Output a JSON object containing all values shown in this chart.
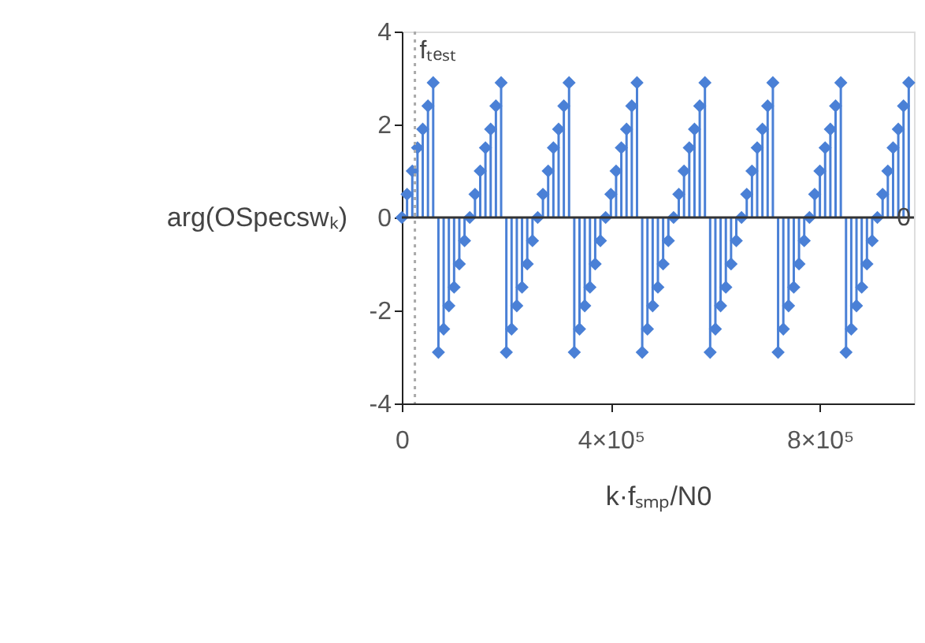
{
  "chart_data": {
    "type": "lollipop",
    "xlabel": "k·fₛₘₚ/N0",
    "ylabel": "arg(OSpecswₖ)",
    "x": [
      0,
      10000,
      20000,
      30000,
      40000,
      50000,
      60000,
      70000,
      80000,
      90000,
      100000,
      110000,
      120000,
      130000,
      140000,
      150000,
      160000,
      170000,
      180000,
      190000,
      200000,
      210000,
      220000,
      230000,
      240000,
      250000,
      260000,
      270000,
      280000,
      290000,
      300000,
      310000,
      320000,
      330000,
      340000,
      350000,
      360000,
      370000,
      380000,
      390000,
      400000,
      410000,
      420000,
      430000,
      440000,
      450000,
      460000,
      470000,
      480000,
      490000,
      500000,
      510000,
      520000,
      530000,
      540000,
      550000,
      560000,
      570000,
      580000,
      590000,
      600000,
      610000,
      620000,
      630000,
      640000,
      650000,
      660000,
      670000,
      680000,
      690000,
      700000,
      710000,
      720000,
      730000,
      740000,
      750000,
      760000,
      770000,
      780000,
      790000,
      800000,
      810000,
      820000,
      830000,
      840000,
      850000,
      860000,
      870000,
      880000,
      890000,
      900000,
      910000,
      920000,
      930000,
      940000,
      950000,
      960000,
      970000
    ],
    "series": [
      {
        "color": "#4a80d6",
        "values": [
          0,
          0.5,
          1.0,
          1.5,
          1.9,
          2.4,
          2.9,
          -2.9,
          -2.4,
          -1.9,
          -1.5,
          -1.0,
          -0.5,
          0,
          0.5,
          1.0,
          1.5,
          1.9,
          2.4,
          2.9,
          -2.9,
          -2.4,
          -1.9,
          -1.5,
          -1.0,
          -0.5,
          0,
          0.5,
          1.0,
          1.5,
          1.9,
          2.4,
          2.9,
          -2.9,
          -2.4,
          -1.9,
          -1.5,
          -1.0,
          -0.5,
          0,
          0.5,
          1.0,
          1.5,
          1.9,
          2.4,
          2.9,
          -2.9,
          -2.4,
          -1.9,
          -1.5,
          -1.0,
          -0.5,
          0,
          0.5,
          1.0,
          1.5,
          1.9,
          2.4,
          2.9,
          -2.9,
          -2.4,
          -1.9,
          -1.5,
          -1.0,
          -0.5,
          0,
          0.5,
          1.0,
          1.5,
          1.9,
          2.4,
          2.9,
          -2.9,
          -2.4,
          -1.9,
          -1.5,
          -1.0,
          -0.5,
          0,
          0.5,
          1.0,
          1.5,
          1.9,
          2.4,
          2.9,
          -2.9,
          -2.4,
          -1.9,
          -1.5,
          -1.0,
          -0.5,
          0,
          0.5,
          1.0,
          1.5,
          1.9,
          2.4,
          2.9
        ]
      }
    ],
    "xlim": [
      0,
      980000
    ],
    "xticks": [
      0,
      {
        "value": 400000,
        "label": "4×10⁵"
      },
      {
        "value": 800000,
        "label": "8×10⁵"
      }
    ],
    "ylim": [
      -4,
      4
    ],
    "yticks": [
      -4,
      -2,
      0,
      2,
      4
    ],
    "ref_lines": [
      {
        "axis": "y",
        "value": 0,
        "label": "0",
        "color": "#333333",
        "line_style": "solid"
      },
      {
        "axis": "x",
        "value": 25000,
        "label": "fₜₑₛₜ",
        "color": "#aaaaaa",
        "line_style": "dotted"
      }
    ],
    "marker": "diamond",
    "grid": false
  }
}
